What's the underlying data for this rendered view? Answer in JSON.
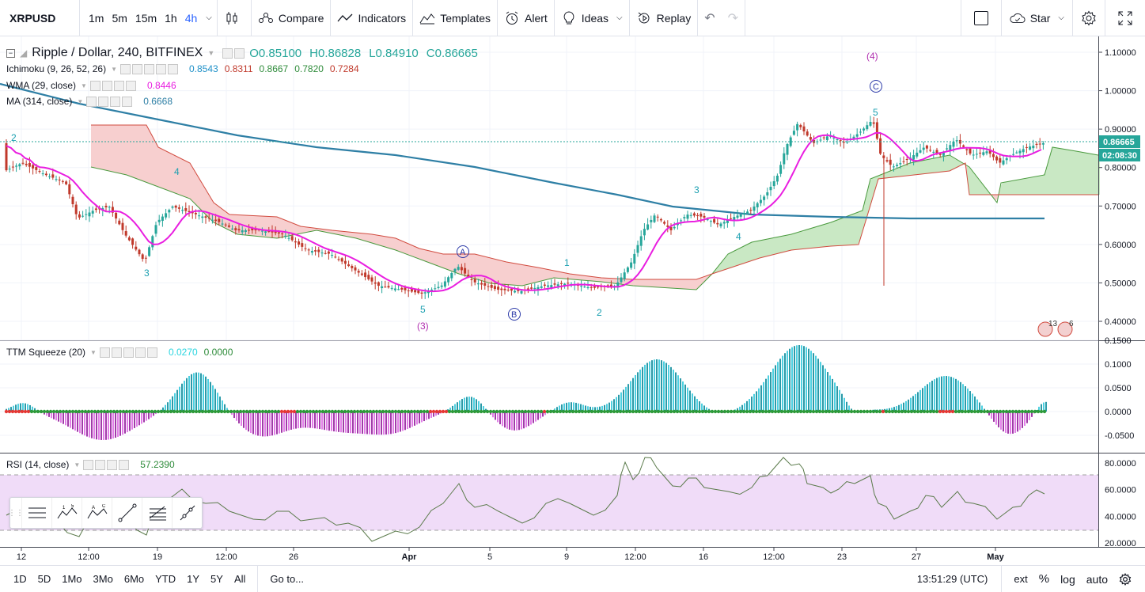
{
  "toolbar": {
    "symbol": "XRPUSD",
    "timeframes": [
      "1m",
      "5m",
      "15m",
      "1h",
      "4h"
    ],
    "active_timeframe": "4h",
    "compare": "Compare",
    "indicators": "Indicators",
    "templates": "Templates",
    "alert": "Alert",
    "ideas": "Ideas",
    "replay": "Replay",
    "star": "Star"
  },
  "main_legend": {
    "title": "Ripple / Dollar, 240, BITFINEX",
    "open": "O0.85100",
    "high": "H0.86828",
    "low": "L0.84910",
    "close": "C0.86665",
    "ichimoku_label": "Ichimoku (9, 26, 52, 26)",
    "ichimoku_values": [
      "0.8543",
      "0.8311",
      "0.8667",
      "0.7820",
      "0.7284"
    ],
    "wma_label": "WMA (29, close)",
    "wma_value": "0.8446",
    "ma_label": "MA (314, close)",
    "ma_value": "0.6668"
  },
  "squeeze_legend": {
    "label": "TTM Squeeze (20)",
    "v1": "0.0270",
    "v2": "0.0000"
  },
  "rsi_legend": {
    "label": "RSI (14, close)",
    "value": "57.2390"
  },
  "price_axis": {
    "ticks": [
      "1.10000",
      "1.00000",
      "0.90000",
      "0.80000",
      "0.70000",
      "0.60000",
      "0.50000",
      "0.40000"
    ],
    "last_price": "0.86665",
    "countdown": "02:08:30"
  },
  "squeeze_axis": {
    "ticks": [
      "0.1500",
      "0.1000",
      "0.0500",
      "0.0000",
      "-0.0500"
    ]
  },
  "rsi_axis": {
    "ticks": [
      "80.0000",
      "60.0000",
      "40.0000",
      "20.0000"
    ]
  },
  "time_axis": [
    "12",
    "12:00",
    "19",
    "12:00",
    "26",
    "Apr",
    "5",
    "9",
    "12:00",
    "16",
    "12:00",
    "23",
    "27",
    "May"
  ],
  "wave_labels": {
    "w2": "2",
    "w4": "4",
    "w3a": "3",
    "w5": "5",
    "w3paren": "(3)",
    "wA": "A",
    "wB": "B",
    "w1": "1",
    "w2b": "2",
    "w3b": "3",
    "w4b": "4",
    "w5b": "5",
    "wC": "C",
    "w4paren": "(4)"
  },
  "badges": [
    "13",
    "6"
  ],
  "bottom": {
    "ranges": [
      "1D",
      "5D",
      "1Mo",
      "3Mo",
      "6Mo",
      "YTD",
      "1Y",
      "5Y",
      "All"
    ],
    "goto": "Go to...",
    "clock": "13:51:29 (UTC)",
    "ext": "ext",
    "pct": "%",
    "log": "log",
    "auto": "auto"
  },
  "colors": {
    "ma": "#2e7fa5",
    "wma": "#e91ee0",
    "up": "#26a69a",
    "down": "#c0392b",
    "kumo_bull": "#c9e8c4",
    "kumo_bear": "#f7cfcf",
    "rsi_band": "#f0dcf8"
  }
}
